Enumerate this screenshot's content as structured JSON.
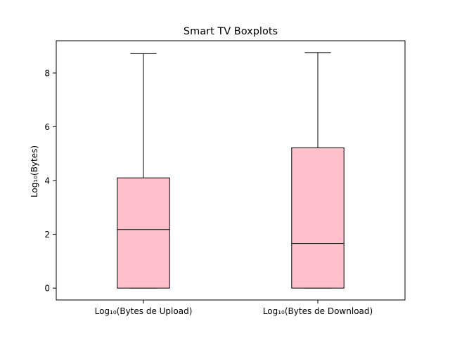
{
  "chart_data": {
    "type": "boxplot",
    "title": "Smart TV Boxplots",
    "xlabel": "",
    "ylabel": "Log₁₀(Bytes)",
    "categories": [
      "Log₁₀(Bytes de Upload)",
      "Log₁₀(Bytes de Download)"
    ],
    "boxes": [
      {
        "whisker_low": 0.0,
        "q1": 0.0,
        "median": 2.18,
        "q3": 4.1,
        "whisker_high": 8.72
      },
      {
        "whisker_low": 0.0,
        "q1": 0.0,
        "median": 1.66,
        "q3": 5.22,
        "whisker_high": 8.76
      }
    ],
    "ylim": [
      -0.44,
      9.2
    ],
    "yticks": [
      0,
      2,
      4,
      6,
      8
    ],
    "grid": false,
    "box_color": "#ffc0cb",
    "edge_color": "#000000"
  }
}
